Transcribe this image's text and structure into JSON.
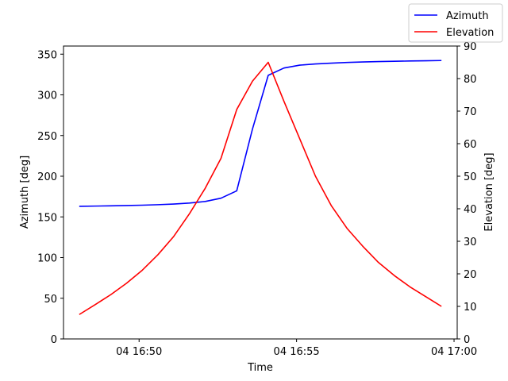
{
  "chart_data": {
    "type": "line",
    "title": "",
    "xlabel": "Time",
    "ylabel_left": "Azimuth [deg]",
    "ylabel_right": "Elevation [deg]",
    "x_tick_labels": [
      "04 16:50",
      "04 16:55",
      "04 17:00"
    ],
    "x_tick_minutes": [
      0,
      5,
      10
    ],
    "x_range_minutes": [
      -2.4,
      10.1
    ],
    "y_left_ticks": [
      "0",
      "50",
      "100",
      "150",
      "200",
      "250",
      "300",
      "350"
    ],
    "y_left_range": [
      0,
      360
    ],
    "y_right_ticks": [
      "0",
      "10",
      "20",
      "30",
      "40",
      "50",
      "60",
      "70",
      "80",
      "90"
    ],
    "y_right_range": [
      0,
      90
    ],
    "legend_position": "top-right",
    "grid": false,
    "x_minutes": [
      -1.9,
      -1.4,
      -0.9,
      -0.4,
      0.1,
      0.6,
      1.1,
      1.6,
      2.1,
      2.6,
      3.1,
      3.6,
      4.1,
      4.6,
      5.1,
      5.6,
      6.1,
      6.6,
      7.1,
      7.6,
      8.1,
      8.6,
      9.1,
      9.6
    ],
    "series": [
      {
        "name": "Azimuth",
        "axis": "left",
        "color": "#0000ff",
        "values": [
          163,
          163.3,
          163.6,
          164,
          164.4,
          165,
          165.8,
          167,
          169,
          173,
          182,
          258,
          324,
          333,
          336.5,
          338,
          339,
          339.8,
          340.4,
          340.9,
          341.3,
          341.6,
          341.9,
          342.2
        ]
      },
      {
        "name": "Elevation",
        "axis": "right",
        "color": "#ff0000",
        "values": [
          7.5,
          10.5,
          13.6,
          17.1,
          21.1,
          25.9,
          31.5,
          38.5,
          46.3,
          55.5,
          70.5,
          79.2,
          85,
          73,
          61.5,
          50,
          41,
          34,
          28.5,
          23.5,
          19.5,
          16,
          13,
          10
        ]
      }
    ]
  }
}
